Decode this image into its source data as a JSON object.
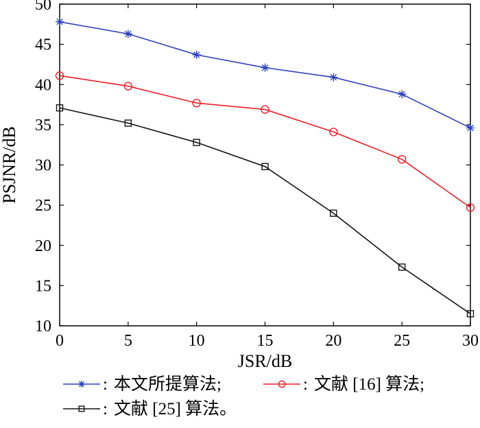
{
  "chart_data": {
    "type": "line",
    "title": "",
    "xlabel": "JSR/dB",
    "ylabel": "PSJNR/dB",
    "xlim": [
      0,
      30
    ],
    "ylim": [
      10,
      50
    ],
    "xticks": [
      0,
      5,
      10,
      15,
      20,
      25,
      30
    ],
    "yticks": [
      10,
      15,
      20,
      25,
      30,
      35,
      40,
      45,
      50
    ],
    "x": [
      0,
      5,
      10,
      15,
      20,
      25,
      30
    ],
    "grid": false,
    "legend_position": "bottom",
    "series": [
      {
        "name": "本文所提算法;",
        "color": "#2b3fbf",
        "marker": "asterisk",
        "values": [
          47.8,
          46.3,
          43.7,
          42.1,
          40.9,
          38.8,
          34.6
        ]
      },
      {
        "name": "文献 [16] 算法;",
        "color": "#ee1c25",
        "marker": "circle",
        "values": [
          41.1,
          39.8,
          37.7,
          36.9,
          34.1,
          30.7,
          24.7
        ]
      },
      {
        "name": "文献 [25] 算法。",
        "color": "#111111",
        "marker": "square",
        "values": [
          37.1,
          35.2,
          32.8,
          29.8,
          24.0,
          17.3,
          11.5
        ]
      }
    ],
    "legend_separator": ":"
  }
}
